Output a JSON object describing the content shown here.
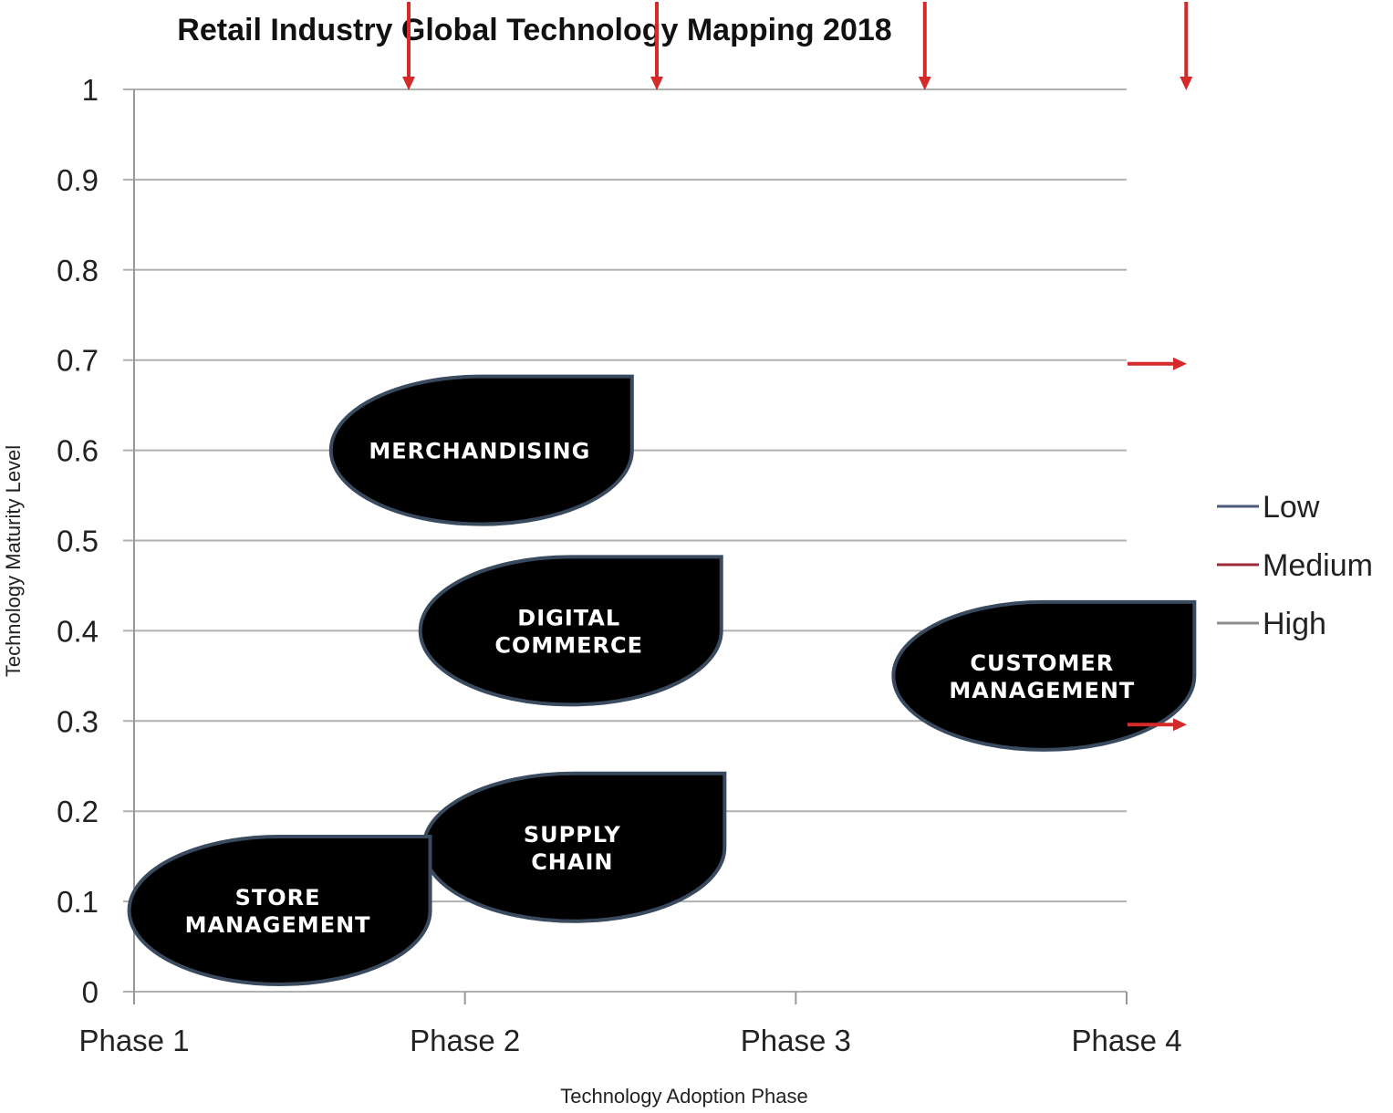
{
  "chart_data": {
    "type": "scatter",
    "title": "Retail Industry Global Technology  Mapping 2018",
    "xlabel": "Technology Adoption  Phase",
    "ylabel": "Technology Maturity Level",
    "x_categories": [
      "Phase 1",
      "Phase 2",
      "Phase 3",
      "Phase 4"
    ],
    "yticks": [
      "0",
      "0.1",
      "0.2",
      "0.3",
      "0.4",
      "0.5",
      "0.6",
      "0.7",
      "0.8",
      "0.9",
      "1"
    ],
    "ylim": [
      0,
      1
    ],
    "grid": true,
    "legend_position": "right",
    "legend": [
      {
        "name": "Low",
        "color": "#4a5a78"
      },
      {
        "name": "Medium",
        "color": "#9b2d3a"
      },
      {
        "name": "High",
        "color": "#8c8c8c"
      }
    ],
    "points": [
      {
        "lines": [
          "MERCHANDISING"
        ],
        "x": 2.05,
        "y": 0.6
      },
      {
        "lines": [
          "DIGITAL",
          "COMMERCE"
        ],
        "x": 2.32,
        "y": 0.4
      },
      {
        "lines": [
          "SUPPLY",
          "CHAIN"
        ],
        "x": 2.33,
        "y": 0.16
      },
      {
        "lines": [
          "STORE",
          "MANAGEMENT"
        ],
        "x": 1.44,
        "y": 0.09
      },
      {
        "lines": [
          "CUSTOMER",
          "MANAGEMENT"
        ],
        "x": 3.75,
        "y": 0.35
      }
    ],
    "annotations": {
      "arrow_color": "#d42a2a",
      "down_arrows_x": [
        1.83,
        2.58,
        3.39,
        4.18
      ],
      "right_arrows_y": [
        0.7,
        0.3
      ]
    }
  }
}
